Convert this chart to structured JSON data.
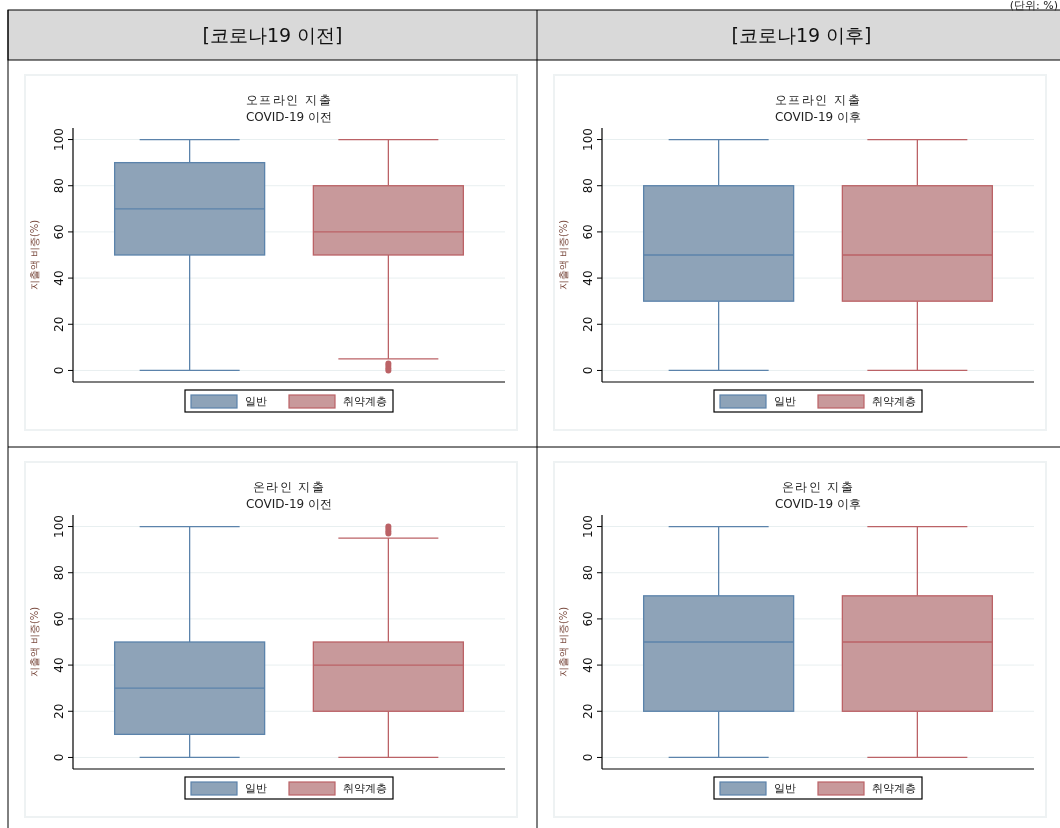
{
  "chart_data": [
    {
      "type": "box",
      "title": "오프라인 지출",
      "subtitle": "COVID-19 이전",
      "ylabel": "지출액 비중(%)",
      "annotations": [
        "[코로나19 이전]"
      ],
      "categories": [
        null
      ],
      "ylim": [
        -5,
        105
      ],
      "yticks": [
        0,
        20,
        40,
        60,
        80,
        100
      ],
      "grid": "y",
      "legend": "bottom",
      "series": [
        {
          "name": "일반",
          "color": "#8ea3b8",
          "boxes": [
            {
              "low": 0,
              "q1": 50,
              "median": 70,
              "q3": 90,
              "high": 100
            }
          ]
        },
        {
          "name": "취약계층",
          "color": "#c8999b",
          "boxes": [
            {
              "low": 5,
              "q1": 50,
              "median": 60,
              "q3": 80,
              "high": 100,
              "outliers": [
                0,
                1,
                2,
                3
              ]
            }
          ]
        }
      ]
    },
    {
      "type": "box",
      "title": "오프라인 지출",
      "subtitle": "COVID-19 이후",
      "ylabel": "지출액 비중(%)",
      "annotations": [
        "[코로나19 이후]",
        "(단위: %)"
      ],
      "categories": [
        null
      ],
      "ylim": [
        -5,
        105
      ],
      "yticks": [
        0,
        20,
        40,
        60,
        80,
        100
      ],
      "grid": "y",
      "legend": "bottom",
      "series": [
        {
          "name": "일반",
          "color": "#8ea3b8",
          "boxes": [
            {
              "low": 0,
              "q1": 30,
              "median": 50,
              "q3": 80,
              "high": 100
            }
          ]
        },
        {
          "name": "취약계층",
          "color": "#c8999b",
          "boxes": [
            {
              "low": 0,
              "q1": 30,
              "median": 50,
              "q3": 80,
              "high": 100
            }
          ]
        }
      ]
    },
    {
      "type": "box",
      "title": "온라인 지출",
      "subtitle": "COVID-19 이전",
      "ylabel": "지출액 비중(%)",
      "categories": [
        null
      ],
      "ylim": [
        -5,
        105
      ],
      "yticks": [
        0,
        20,
        40,
        60,
        80,
        100
      ],
      "grid": "y",
      "legend": "bottom",
      "series": [
        {
          "name": "일반",
          "color": "#8ea3b8",
          "boxes": [
            {
              "low": 0,
              "q1": 10,
              "median": 30,
              "q3": 50,
              "high": 100
            }
          ]
        },
        {
          "name": "취약계층",
          "color": "#c8999b",
          "boxes": [
            {
              "low": 0,
              "q1": 20,
              "median": 40,
              "q3": 50,
              "high": 95,
              "outliers": [
                97,
                98,
                99,
                100
              ]
            }
          ]
        }
      ]
    },
    {
      "type": "box",
      "title": "온라인 지출",
      "subtitle": "COVID-19 이후",
      "ylabel": "지출액 비중(%)",
      "categories": [
        null
      ],
      "ylim": [
        -5,
        105
      ],
      "yticks": [
        0,
        20,
        40,
        60,
        80,
        100
      ],
      "grid": "y",
      "legend": "bottom",
      "series": [
        {
          "name": "일반",
          "color": "#8ea3b8",
          "boxes": [
            {
              "low": 0,
              "q1": 20,
              "median": 50,
              "q3": 70,
              "high": 100
            }
          ]
        },
        {
          "name": "취약계층",
          "color": "#c8999b",
          "boxes": [
            {
              "low": 0,
              "q1": 20,
              "median": 50,
              "q3": 70,
              "high": 100
            }
          ]
        }
      ]
    }
  ]
}
